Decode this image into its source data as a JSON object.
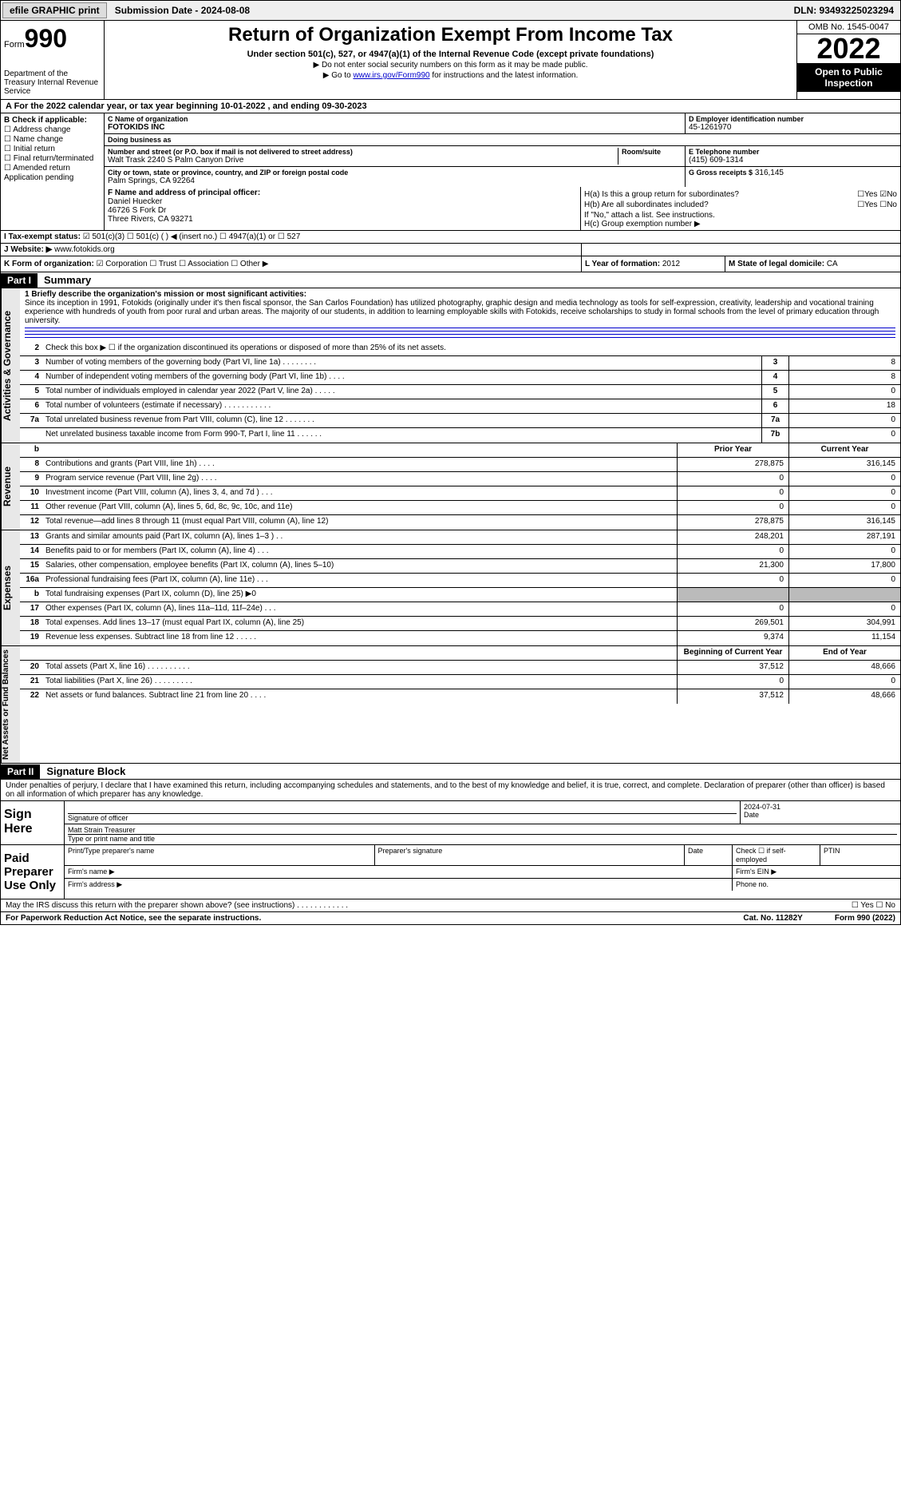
{
  "topbar": {
    "efile": "efile GRAPHIC print",
    "submission": "Submission Date - 2024-08-08",
    "dln": "DLN: 93493225023294"
  },
  "header": {
    "form_label": "Form",
    "form_num": "990",
    "title": "Return of Organization Exempt From Income Tax",
    "subtitle": "Under section 501(c), 527, or 4947(a)(1) of the Internal Revenue Code (except private foundations)",
    "note1": "▶ Do not enter social security numbers on this form as it may be made public.",
    "note2_pre": "▶ Go to ",
    "note2_link": "www.irs.gov/Form990",
    "note2_post": " for instructions and the latest information.",
    "dept": "Department of the Treasury\nInternal Revenue Service",
    "omb": "OMB No. 1545-0047",
    "year": "2022",
    "open": "Open to Public Inspection"
  },
  "a": {
    "text": "A  For the 2022 calendar year, or tax year beginning 10-01-2022    , and ending 09-30-2023"
  },
  "b": {
    "title": "B Check if applicable:",
    "items": [
      "☐ Address change",
      "☐ Name change",
      "☐ Initial return",
      "☐ Final return/terminated",
      "☐ Amended return",
      "  Application pending"
    ]
  },
  "c": {
    "name_label": "C Name of organization",
    "name": "FOTOKIDS INC",
    "dba_label": "Doing business as",
    "dba": "",
    "street_label": "Number and street (or P.O. box if mail is not delivered to street address)",
    "room_label": "Room/suite",
    "street": "Walt Trask 2240 S Palm Canyon Drive",
    "city_label": "City or town, state or province, country, and ZIP or foreign postal code",
    "city": "Palm Springs, CA  92264"
  },
  "d": {
    "label": "D Employer identification number",
    "val": "45-1261970"
  },
  "e": {
    "label": "E Telephone number",
    "val": "(415) 609-1314"
  },
  "g": {
    "label": "G Gross receipts $",
    "val": "316,145"
  },
  "f": {
    "label": "F Name and address of principal officer:",
    "name": "Daniel Huecker",
    "addr1": "46726 S Fork Dr",
    "addr2": "Three Rivers, CA  93271"
  },
  "h": {
    "a": "H(a)  Is this a group return for subordinates?",
    "a_yes": "Yes",
    "a_no": "No",
    "b": "H(b)  Are all subordinates included?",
    "b_note": "If \"No,\" attach a list. See instructions.",
    "c": "H(c)  Group exemption number ▶"
  },
  "i": {
    "label": "I    Tax-exempt status:",
    "opts": "☑ 501(c)(3)   ☐ 501(c) (  ) ◀ (insert no.)   ☐ 4947(a)(1) or   ☐ 527"
  },
  "j": {
    "label": "J   Website: ▶",
    "val": "www.fotokids.org"
  },
  "k": {
    "label": "K Form of organization:",
    "opts": "☑ Corporation  ☐ Trust  ☐ Association  ☐ Other ▶"
  },
  "l": {
    "label": "L Year of formation:",
    "val": "2012"
  },
  "m": {
    "label": "M State of legal domicile:",
    "val": "CA"
  },
  "part1": {
    "hdr": "Part I",
    "title": "Summary",
    "q1": "1  Briefly describe the organization's mission or most significant activities:",
    "mission": "Since its inception in 1991, Fotokids (originally under it's then fiscal sponsor, the San Carlos Foundation) has utilized photography, graphic design and media technology as tools for self-expression, creativity, leadership and vocational training experience with hundreds of youth from poor rural and urban areas. The majority of our students, in addition to learning employable skills with Fotokids, receive scholarships to study in formal schools from the level of primary education through university.",
    "q2": "Check this box ▶ ☐  if the organization discontinued its operations or disposed of more than 25% of its net assets."
  },
  "governance": {
    "rows": [
      {
        "n": "3",
        "d": "Number of voting members of the governing body (Part VI, line 1a)  .    .    .    .    .    .    .    .",
        "b": "3",
        "v": "8"
      },
      {
        "n": "4",
        "d": "Number of independent voting members of the governing body (Part VI, line 1b)    .    .    .    .",
        "b": "4",
        "v": "8"
      },
      {
        "n": "5",
        "d": "Total number of individuals employed in calendar year 2022 (Part V, line 2a)   .    .    .    .    .",
        "b": "5",
        "v": "0"
      },
      {
        "n": "6",
        "d": "Total number of volunteers (estimate if necessary)  .    .    .    .    .    .    .    .    .    .    .",
        "b": "6",
        "v": "18"
      },
      {
        "n": "7a",
        "d": "Total unrelated business revenue from Part VIII, column (C), line 12  .    .    .    .    .    .    .",
        "b": "7a",
        "v": "0"
      },
      {
        "n": "",
        "d": "Net unrelated business taxable income from Form 990-T, Part I, line 11   .    .    .    .    .    .",
        "b": "7b",
        "v": "0"
      }
    ]
  },
  "revenue": {
    "hdr_b": "b",
    "hdr_prior": "Prior Year",
    "hdr_curr": "Current Year",
    "rows": [
      {
        "n": "8",
        "d": "Contributions and grants (Part VIII, line 1h)   .    .    .    .",
        "p": "278,875",
        "c": "316,145"
      },
      {
        "n": "9",
        "d": "Program service revenue (Part VIII, line 2g)   .    .    .    .",
        "p": "0",
        "c": "0"
      },
      {
        "n": "10",
        "d": "Investment income (Part VIII, column (A), lines 3, 4, and 7d )   .    .    .",
        "p": "0",
        "c": "0"
      },
      {
        "n": "11",
        "d": "Other revenue (Part VIII, column (A), lines 5, 6d, 8c, 9c, 10c, and 11e)",
        "p": "0",
        "c": "0"
      },
      {
        "n": "12",
        "d": "Total revenue—add lines 8 through 11 (must equal Part VIII, column (A), line 12)",
        "p": "278,875",
        "c": "316,145"
      }
    ]
  },
  "expenses": {
    "rows": [
      {
        "n": "13",
        "d": "Grants and similar amounts paid (Part IX, column (A), lines 1–3 )  .    .",
        "p": "248,201",
        "c": "287,191"
      },
      {
        "n": "14",
        "d": "Benefits paid to or for members (Part IX, column (A), line 4)  .    .    .",
        "p": "0",
        "c": "0"
      },
      {
        "n": "15",
        "d": "Salaries, other compensation, employee benefits (Part IX, column (A), lines 5–10)",
        "p": "21,300",
        "c": "17,800"
      },
      {
        "n": "16a",
        "d": "Professional fundraising fees (Part IX, column (A), line 11e)   .    .    .",
        "p": "0",
        "c": "0"
      },
      {
        "n": "b",
        "d": "Total fundraising expenses (Part IX, column (D), line 25) ▶0",
        "p": "",
        "c": "",
        "shade": true
      },
      {
        "n": "17",
        "d": "Other expenses (Part IX, column (A), lines 11a–11d, 11f–24e)   .    .    .",
        "p": "0",
        "c": "0"
      },
      {
        "n": "18",
        "d": "Total expenses. Add lines 13–17 (must equal Part IX, column (A), line 25)",
        "p": "269,501",
        "c": "304,991"
      },
      {
        "n": "19",
        "d": "Revenue less expenses. Subtract line 18 from line 12   .    .    .    .    .",
        "p": "9,374",
        "c": "11,154"
      }
    ]
  },
  "netassets": {
    "hdr_prior": "Beginning of Current Year",
    "hdr_curr": "End of Year",
    "rows": [
      {
        "n": "20",
        "d": "Total assets (Part X, line 16)  .    .    .    .    .    .    .    .    .    .",
        "p": "37,512",
        "c": "48,666"
      },
      {
        "n": "21",
        "d": "Total liabilities (Part X, line 26)   .    .    .    .    .    .    .    .    .",
        "p": "0",
        "c": "0"
      },
      {
        "n": "22",
        "d": "Net assets or fund balances. Subtract line 21 from line 20  .    .    .    .",
        "p": "37,512",
        "c": "48,666"
      }
    ]
  },
  "part2": {
    "hdr": "Part II",
    "title": "Signature Block",
    "decl": "Under penalties of perjury, I declare that I have examined this return, including accompanying schedules and statements, and to the best of my knowledge and belief, it is true, correct, and complete. Declaration of preparer (other than officer) is based on all information of which preparer has any knowledge."
  },
  "sign": {
    "label": "Sign Here",
    "sig_officer": "Signature of officer",
    "date": "2024-07-31",
    "date_label": "Date",
    "name": "Matt Strain Treasurer",
    "name_label": "Type or print name and title"
  },
  "paid": {
    "label": "Paid Preparer Use Only",
    "h1": "Print/Type preparer's name",
    "h2": "Preparer's signature",
    "h3": "Date",
    "h4": "Check ☐ if self-employed",
    "h5": "PTIN",
    "firm_name": "Firm's name   ▶",
    "firm_ein": "Firm's EIN ▶",
    "firm_addr": "Firm's address ▶",
    "phone": "Phone no."
  },
  "footer": {
    "q": "May the IRS discuss this return with the preparer shown above? (see instructions)   .    .    .    .    .    .    .    .    .    .    .    .",
    "yn": "☐ Yes   ☐ No",
    "notice": "For Paperwork Reduction Act Notice, see the separate instructions.",
    "cat": "Cat. No. 11282Y",
    "form": "Form 990 (2022)"
  }
}
